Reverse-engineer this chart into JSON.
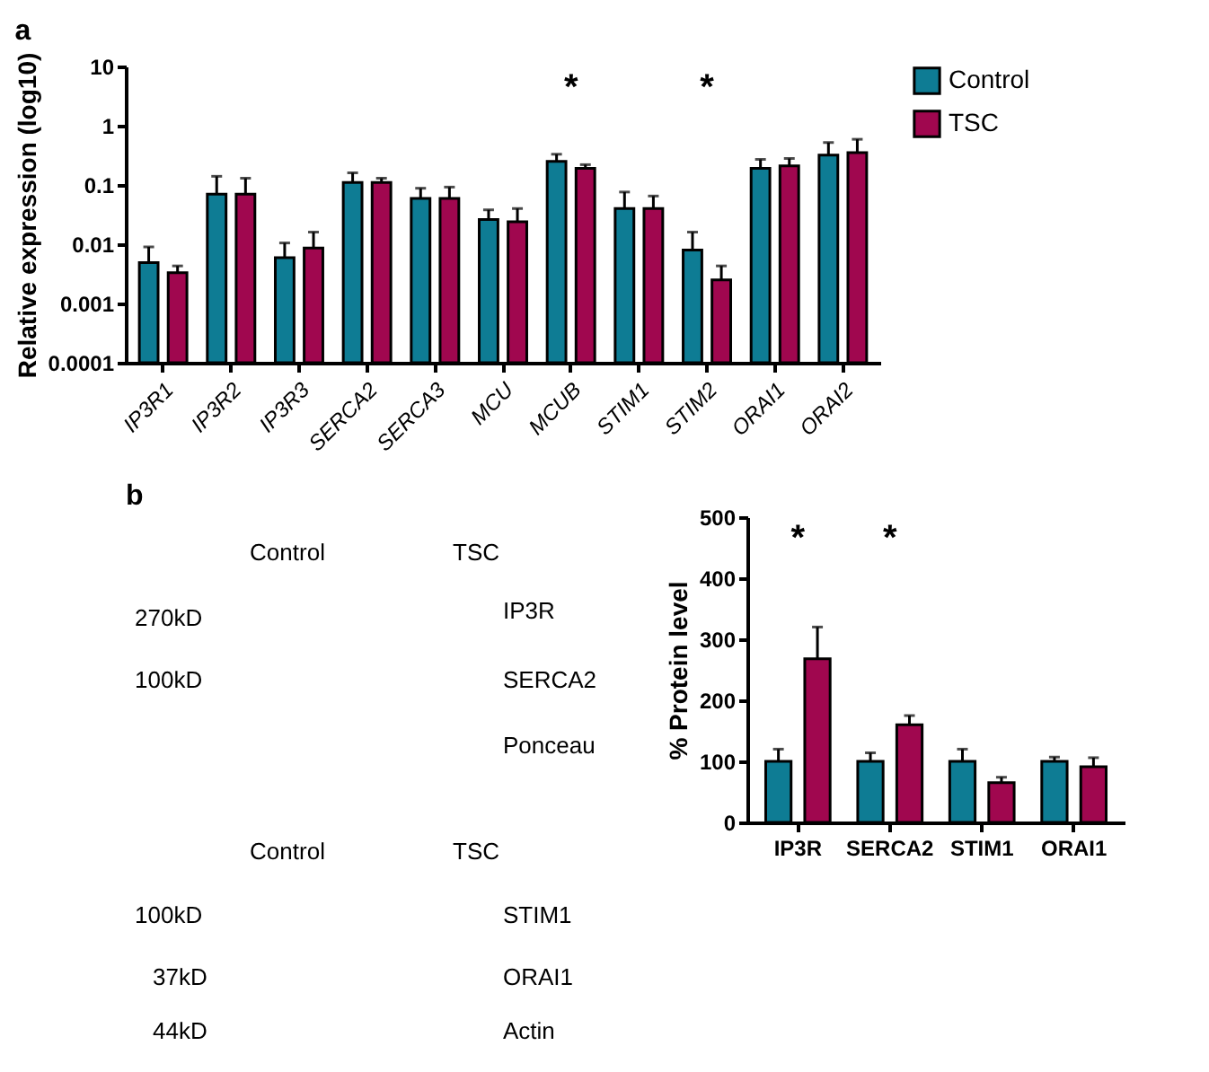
{
  "chart_data": [
    {
      "type": "bar",
      "title": "a",
      "ylabel": "Relative expression (log10)",
      "log": true,
      "legend": "top right",
      "categories": [
        "IP3R1",
        "IP3R2",
        "IP3R3",
        "SERCA2",
        "SERCA3",
        "MCU",
        "MCUB",
        "STIM1",
        "STIM2",
        "ORAI1",
        "ORAI2"
      ],
      "ylim": [
        0.0001,
        10
      ],
      "yticks": [
        0.0001,
        0.001,
        0.01,
        0.1,
        1,
        10
      ],
      "series": [
        {
          "name": "Control",
          "color": "#0e7c94",
          "values": [
            0.0049,
            0.07,
            0.0059,
            0.11,
            0.059,
            0.026,
            0.25,
            0.04,
            0.008,
            0.19,
            0.32
          ],
          "errors": [
            [
              0.0049,
              0.009
            ],
            [
              0.07,
              0.14
            ],
            [
              0.0059,
              0.0105
            ],
            [
              0.11,
              0.16
            ],
            [
              0.059,
              0.088
            ],
            [
              0.026,
              0.038
            ],
            [
              0.25,
              0.33
            ],
            [
              0.04,
              0.076
            ],
            [
              0.008,
              0.016
            ],
            [
              0.19,
              0.27
            ],
            [
              0.32,
              0.52
            ]
          ]
        },
        {
          "name": "TSC",
          "color": "#a0074f",
          "values": [
            0.0033,
            0.07,
            0.0086,
            0.11,
            0.059,
            0.024,
            0.19,
            0.04,
            0.0025,
            0.21,
            0.35
          ],
          "errors": [
            [
              0.0033,
              0.0043
            ],
            [
              0.07,
              0.13
            ],
            [
              0.0086,
              0.016
            ],
            [
              0.11,
              0.13
            ],
            [
              0.059,
              0.092
            ],
            [
              0.024,
              0.04
            ],
            [
              0.19,
              0.22
            ],
            [
              0.04,
              0.065
            ],
            [
              0.0025,
              0.0043
            ],
            [
              0.21,
              0.28
            ],
            [
              0.35,
              0.59
            ]
          ]
        }
      ],
      "annotations": [
        "*",
        "*"
      ]
    },
    {
      "type": "other",
      "title": "b",
      "annotations": [
        "Control",
        "TSC",
        "270kD",
        "IP3R",
        "100kD",
        "SERCA2",
        "Ponceau",
        "Control",
        "TSC",
        "100kD",
        "STIM1",
        "37kD",
        "ORAI1",
        "44kD",
        "Actin"
      ]
    },
    {
      "type": "bar",
      "ylabel": "% Protein level",
      "legend": false,
      "categories": [
        "IP3R",
        "SERCA2",
        "STIM1",
        "ORAI1"
      ],
      "ylim": [
        0,
        500
      ],
      "yticks": [
        0,
        100,
        200,
        300,
        400,
        500
      ],
      "series": [
        {
          "color": "#0e7c94",
          "values": [
            100,
            100,
            100,
            100
          ],
          "errors": [
            [
              100,
              120
            ],
            [
              100,
              114
            ],
            [
              100,
              120
            ],
            [
              100,
              107
            ]
          ]
        },
        {
          "color": "#a0074f",
          "values": [
            268,
            160,
            65,
            91
          ],
          "errors": [
            [
              268,
              320
            ],
            [
              160,
              175
            ],
            [
              65,
              74
            ],
            [
              91,
              106
            ]
          ]
        }
      ],
      "annotations": [
        "*",
        "*"
      ]
    }
  ]
}
